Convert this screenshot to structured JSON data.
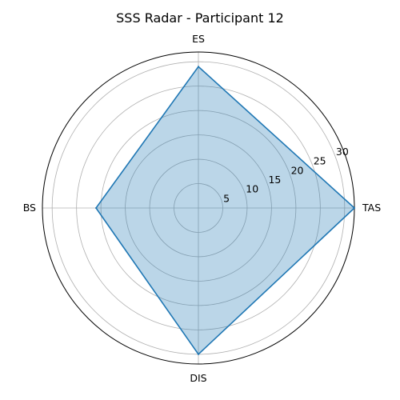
{
  "chart_data": {
    "type": "radar",
    "title": "SSS Radar - Participant 12",
    "categories": [
      "TAS",
      "ES",
      "BS",
      "DIS"
    ],
    "values": [
      32,
      29,
      21,
      30
    ],
    "rlim": [
      0,
      32
    ],
    "rticks": [
      5,
      10,
      15,
      20,
      25,
      30
    ],
    "rtick_labels": [
      "5",
      "10",
      "15",
      "20",
      "25",
      "30"
    ],
    "grid": true,
    "colors": {
      "line": "#1f77b4",
      "fill": "#1f77b4",
      "fill_opacity": 0.3
    }
  }
}
